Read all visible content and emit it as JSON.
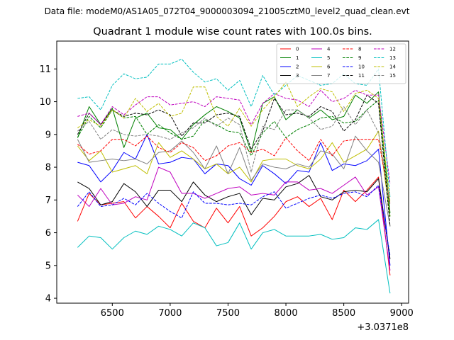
{
  "chart_data": {
    "type": "line",
    "suptitle": "Data file: modeM0/AS1A05_072T04_9000003094_21005cztM0_level2_quad_clean.evt",
    "title": "Quadrant 1 module wise count rates with 100.0s bins.",
    "xlabel": "",
    "ylabel": "",
    "x_offset_label": "+3.0371e8",
    "xlim": [
      6020,
      9060
    ],
    "ylim": [
      3.85,
      11.85
    ],
    "xticks": [
      6500,
      7000,
      7500,
      8000,
      8500,
      9000
    ],
    "yticks": [
      4,
      5,
      6,
      7,
      8,
      9,
      10,
      11
    ],
    "legend_position": "top-right",
    "x": [
      6200,
      6300,
      6400,
      6500,
      6600,
      6700,
      6800,
      6900,
      7000,
      7100,
      7200,
      7300,
      7400,
      7500,
      7600,
      7700,
      7800,
      7900,
      8000,
      8100,
      8200,
      8300,
      8400,
      8500,
      8600,
      8700,
      8800,
      8900
    ],
    "series": [
      {
        "name": "0",
        "color": "#ff0000",
        "dash": "solid",
        "values": [
          6.35,
          7.2,
          6.85,
          6.9,
          6.95,
          6.45,
          6.8,
          6.5,
          6.15,
          6.9,
          6.35,
          6.15,
          6.75,
          6.3,
          6.8,
          5.9,
          6.15,
          6.5,
          6.95,
          7.1,
          6.8,
          7.05,
          6.4,
          7.3,
          6.95,
          7.3,
          7.7,
          4.7
        ]
      },
      {
        "name": "1",
        "color": "#008000",
        "dash": "solid",
        "values": [
          8.9,
          9.85,
          9.3,
          9.8,
          8.6,
          9.5,
          9.65,
          9.2,
          9.15,
          8.85,
          9.3,
          9.6,
          9.85,
          9.7,
          9.5,
          8.45,
          9.95,
          10.15,
          9.45,
          9.75,
          9.5,
          9.75,
          9.45,
          9.55,
          10.2,
          9.95,
          10.3,
          6.6
        ]
      },
      {
        "name": "2",
        "color": "#0000ff",
        "dash": "solid",
        "values": [
          8.15,
          8.05,
          7.55,
          7.9,
          8.45,
          8.25,
          9.0,
          8.1,
          8.15,
          8.3,
          8.25,
          7.8,
          8.1,
          8.05,
          7.65,
          7.45,
          8.05,
          7.8,
          7.5,
          7.9,
          7.85,
          8.75,
          7.9,
          8.1,
          8.05,
          8.2,
          8.55,
          5.0
        ]
      },
      {
        "name": "3",
        "color": "#000000",
        "dash": "solid",
        "values": [
          7.55,
          7.35,
          6.85,
          6.95,
          7.5,
          7.25,
          6.8,
          7.3,
          7.3,
          6.95,
          7.55,
          7.15,
          6.95,
          7.1,
          7.2,
          6.55,
          7.05,
          7.0,
          7.4,
          7.5,
          7.75,
          7.1,
          7.0,
          7.25,
          7.3,
          7.25,
          7.65,
          5.2
        ]
      },
      {
        "name": "4",
        "color": "#bf00bf",
        "dash": "solid",
        "values": [
          7.15,
          6.8,
          7.35,
          6.85,
          6.9,
          7.1,
          7.0,
          8.0,
          7.85,
          7.2,
          7.2,
          7.05,
          7.2,
          7.35,
          7.4,
          7.15,
          7.2,
          7.15,
          7.55,
          7.55,
          7.3,
          7.35,
          7.2,
          7.45,
          7.7,
          7.15,
          7.4,
          4.85
        ]
      },
      {
        "name": "5",
        "color": "#00bfbf",
        "dash": "solid",
        "values": [
          5.55,
          5.9,
          5.85,
          5.5,
          5.85,
          6.05,
          5.95,
          6.2,
          6.1,
          5.9,
          6.3,
          6.15,
          5.6,
          5.7,
          6.3,
          5.5,
          6.0,
          6.1,
          5.9,
          5.9,
          5.9,
          5.95,
          5.8,
          5.85,
          6.15,
          6.1,
          6.4,
          4.15
        ]
      },
      {
        "name": "6",
        "color": "#bfbf00",
        "dash": "solid",
        "values": [
          8.65,
          8.2,
          8.5,
          7.85,
          7.95,
          8.05,
          7.8,
          8.75,
          8.3,
          8.5,
          8.25,
          7.95,
          8.1,
          7.8,
          8.0,
          7.55,
          8.2,
          8.25,
          8.25,
          8.05,
          7.95,
          8.25,
          8.75,
          8.15,
          8.35,
          8.55,
          9.1,
          6.5
        ]
      },
      {
        "name": "7",
        "color": "#808080",
        "dash": "solid",
        "values": [
          8.85,
          8.15,
          8.2,
          8.25,
          8.2,
          8.25,
          8.1,
          8.45,
          8.5,
          8.8,
          8.45,
          7.95,
          8.65,
          7.8,
          8.6,
          7.6,
          8.1,
          8.0,
          7.95,
          8.1,
          8.0,
          8.5,
          8.4,
          7.95,
          8.95,
          8.5,
          8.15,
          6.2
        ]
      },
      {
        "name": "8",
        "color": "#ff0000",
        "dash": "dashed",
        "values": [
          8.7,
          8.4,
          8.5,
          8.85,
          8.85,
          8.65,
          8.95,
          8.6,
          8.45,
          8.75,
          8.6,
          8.2,
          8.35,
          8.65,
          8.75,
          8.45,
          8.55,
          8.35,
          8.9,
          8.5,
          8.2,
          8.85,
          8.35,
          8.8,
          8.85,
          8.85,
          8.85,
          6.9
        ]
      },
      {
        "name": "9",
        "color": "#008000",
        "dash": "dashed",
        "values": [
          8.9,
          9.55,
          9.2,
          9.75,
          9.5,
          9.55,
          9.0,
          9.3,
          9.05,
          8.85,
          8.95,
          9.45,
          9.3,
          9.1,
          9.05,
          8.35,
          9.05,
          9.4,
          8.9,
          9.15,
          9.3,
          9.5,
          9.55,
          9.35,
          9.4,
          9.75,
          10.05,
          6.5
        ]
      },
      {
        "name": "10",
        "color": "#0000ff",
        "dash": "dashed",
        "values": [
          6.8,
          7.25,
          6.8,
          6.85,
          7.05,
          6.85,
          7.2,
          6.9,
          6.65,
          6.45,
          7.25,
          6.9,
          6.9,
          6.85,
          6.9,
          6.85,
          7.1,
          7.25,
          6.75,
          6.9,
          7.05,
          7.15,
          7.05,
          7.2,
          7.25,
          7.1,
          7.45,
          5.3
        ]
      },
      {
        "name": "11",
        "color": "#000000",
        "dash": "dashed",
        "values": [
          9.0,
          9.65,
          9.3,
          9.75,
          9.55,
          9.65,
          9.6,
          9.75,
          9.6,
          8.95,
          9.35,
          9.35,
          9.6,
          9.65,
          9.55,
          8.55,
          9.1,
          10.1,
          9.6,
          9.65,
          9.55,
          9.85,
          9.7,
          9.1,
          9.45,
          10.2,
          9.95,
          6.2
        ]
      },
      {
        "name": "12",
        "color": "#bf00bf",
        "dash": "dashed",
        "values": [
          9.55,
          9.65,
          9.3,
          9.85,
          9.6,
          9.9,
          10.15,
          10.15,
          9.9,
          9.95,
          10.0,
          9.85,
          10.15,
          10.1,
          10.05,
          9.3,
          9.95,
          10.25,
          10.1,
          10.05,
          9.85,
          10.35,
          10.0,
          10.1,
          10.35,
          10.2,
          10.2,
          7.5
        ]
      },
      {
        "name": "13",
        "color": "#00bfbf",
        "dash": "dashed",
        "values": [
          10.1,
          10.15,
          9.75,
          10.5,
          10.85,
          10.7,
          10.75,
          11.15,
          11.15,
          11.3,
          10.9,
          10.6,
          10.7,
          10.35,
          10.65,
          9.85,
          10.8,
          10.2,
          10.5,
          10.8,
          10.65,
          10.5,
          10.55,
          10.85,
          10.55,
          10.5,
          11.0,
          7.1
        ]
      },
      {
        "name": "14",
        "color": "#bfbf00",
        "dash": "dashed",
        "values": [
          9.2,
          9.45,
          9.25,
          9.75,
          9.5,
          10.1,
          9.7,
          9.95,
          9.55,
          9.65,
          10.45,
          10.45,
          9.55,
          9.25,
          9.8,
          9.25,
          9.75,
          10.15,
          10.6,
          9.85,
          10.15,
          10.4,
          10.3,
          9.7,
          10.25,
          10.35,
          10.1,
          6.95
        ]
      },
      {
        "name": "15",
        "color": "#808080",
        "dash": "dashed",
        "values": [
          9.1,
          9.4,
          8.85,
          9.15,
          9.0,
          8.95,
          9.0,
          8.95,
          8.85,
          9.05,
          9.2,
          9.5,
          9.25,
          9.5,
          9.3,
          7.85,
          9.25,
          9.15,
          9.75,
          9.75,
          9.5,
          9.15,
          9.25,
          9.85,
          9.3,
          9.75,
          9.05,
          6.85
        ]
      }
    ]
  }
}
